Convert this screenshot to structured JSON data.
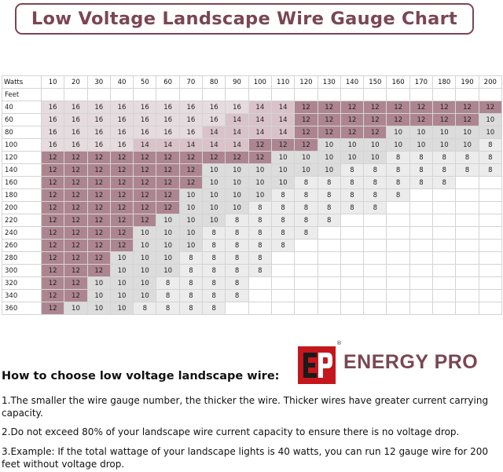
{
  "title": "Low Voltage Landscape Wire Gauge Chart",
  "table": {
    "corner_label": "Watts",
    "row_axis_label": "Feet",
    "watts": [
      "10",
      "20",
      "30",
      "40",
      "50",
      "60",
      "70",
      "80",
      "90",
      "100",
      "110",
      "120",
      "130",
      "140",
      "150",
      "160",
      "170",
      "180",
      "190",
      "200"
    ],
    "rows": [
      {
        "feet": "40",
        "cells": [
          "16",
          "16",
          "16",
          "16",
          "16",
          "16",
          "16",
          "16",
          "16",
          "14",
          "14",
          "12",
          "12",
          "12",
          "12",
          "12",
          "12",
          "12",
          "12",
          "12"
        ]
      },
      {
        "feet": "60",
        "cells": [
          "16",
          "16",
          "16",
          "16",
          "16",
          "16",
          "16",
          "16",
          "14",
          "14",
          "14",
          "12",
          "12",
          "12",
          "12",
          "12",
          "12",
          "12",
          "12",
          "10"
        ]
      },
      {
        "feet": "80",
        "cells": [
          "16",
          "16",
          "16",
          "16",
          "16",
          "16",
          "16",
          "14",
          "14",
          "14",
          "14",
          "12",
          "12",
          "12",
          "12",
          "10",
          "10",
          "10",
          "10",
          "10"
        ]
      },
      {
        "feet": "100",
        "cells": [
          "16",
          "16",
          "16",
          "16",
          "14",
          "14",
          "14",
          "14",
          "14",
          "12",
          "12",
          "12",
          "10",
          "10",
          "10",
          "10",
          "10",
          "10",
          "10",
          "8"
        ]
      },
      {
        "feet": "120",
        "cells": [
          "12",
          "12",
          "12",
          "12",
          "12",
          "12",
          "12",
          "12",
          "12",
          "12",
          "10",
          "10",
          "10",
          "10",
          "10",
          "8",
          "8",
          "8",
          "8",
          "8"
        ]
      },
      {
        "feet": "140",
        "cells": [
          "12",
          "12",
          "12",
          "12",
          "12",
          "12",
          "12",
          "10",
          "10",
          "10",
          "10",
          "10",
          "10",
          "8",
          "8",
          "8",
          "8",
          "8",
          "8",
          "8"
        ]
      },
      {
        "feet": "160",
        "cells": [
          "12",
          "12",
          "12",
          "12",
          "12",
          "12",
          "12",
          "10",
          "10",
          "10",
          "10",
          "8",
          "8",
          "8",
          "8",
          "8",
          "8",
          "8",
          "",
          ""
        ]
      },
      {
        "feet": "180",
        "cells": [
          "12",
          "12",
          "12",
          "12",
          "12",
          "12",
          "10",
          "10",
          "10",
          "10",
          "8",
          "8",
          "8",
          "8",
          "8",
          "8",
          "",
          "",
          "",
          ""
        ]
      },
      {
        "feet": "200",
        "cells": [
          "12",
          "12",
          "12",
          "12",
          "12",
          "12",
          "10",
          "10",
          "10",
          "8",
          "8",
          "8",
          "8",
          "8",
          "8",
          "",
          "",
          "",
          "",
          ""
        ]
      },
      {
        "feet": "220",
        "cells": [
          "12",
          "12",
          "12",
          "12",
          "12",
          "10",
          "10",
          "10",
          "8",
          "8",
          "8",
          "8",
          "8",
          "",
          "",
          "",
          "",
          "",
          "",
          ""
        ]
      },
      {
        "feet": "240",
        "cells": [
          "12",
          "12",
          "12",
          "12",
          "10",
          "10",
          "10",
          "8",
          "8",
          "8",
          "8",
          "8",
          "",
          "",
          "",
          "",
          "",
          "",
          "",
          ""
        ]
      },
      {
        "feet": "260",
        "cells": [
          "12",
          "12",
          "12",
          "12",
          "10",
          "10",
          "10",
          "8",
          "8",
          "8",
          "8",
          "",
          "",
          "",
          "",
          "",
          "",
          "",
          "",
          ""
        ]
      },
      {
        "feet": "280",
        "cells": [
          "12",
          "12",
          "12",
          "10",
          "10",
          "10",
          "8",
          "8",
          "8",
          "8",
          "",
          "",
          "",
          "",
          "",
          "",
          "",
          "",
          "",
          ""
        ]
      },
      {
        "feet": "300",
        "cells": [
          "12",
          "12",
          "12",
          "10",
          "10",
          "10",
          "8",
          "8",
          "8",
          "8",
          "",
          "",
          "",
          "",
          "",
          "",
          "",
          "",
          "",
          ""
        ]
      },
      {
        "feet": "320",
        "cells": [
          "12",
          "12",
          "10",
          "10",
          "10",
          "8",
          "8",
          "8",
          "8",
          "",
          "",
          "",
          "",
          "",
          "",
          "",
          "",
          "",
          "",
          ""
        ]
      },
      {
        "feet": "340",
        "cells": [
          "12",
          "12",
          "10",
          "10",
          "10",
          "8",
          "8",
          "8",
          "8",
          "",
          "",
          "",
          "",
          "",
          "",
          "",
          "",
          "",
          "",
          ""
        ]
      },
      {
        "feet": "360",
        "cells": [
          "12",
          "10",
          "10",
          "10",
          "8",
          "8",
          "8",
          "8",
          "",
          "",
          "",
          "",
          "",
          "",
          "",
          "",
          "",
          "",
          "",
          ""
        ]
      }
    ]
  },
  "colors": {
    "accent": "#7a4654",
    "gauge_12": "#ad8591",
    "gauge_14": "#d9c2c9",
    "gauge_16": "#e6dbdf",
    "gauge_10": "#dcdcdc",
    "gauge_8": "#ececec"
  },
  "logo": {
    "brand": "ENERGY PRO",
    "registered": "®",
    "icon": "energy-pro-logo-mark"
  },
  "howto_heading": "How to choose low voltage landscape wire:",
  "instructions": {
    "p1": "1.The smaller the wire gauge number, the thicker the wire. Thicker wires have greater current carrying capacity.",
    "p2": "2.Do not exceed 80% of your landscape wire current capacity to ensure there is no voltage drop.",
    "p3": "3.Example: If the total wattage of your landscape lights is 40 watts, you can run 12 gauge wire for 200 feet without voltage drop."
  }
}
